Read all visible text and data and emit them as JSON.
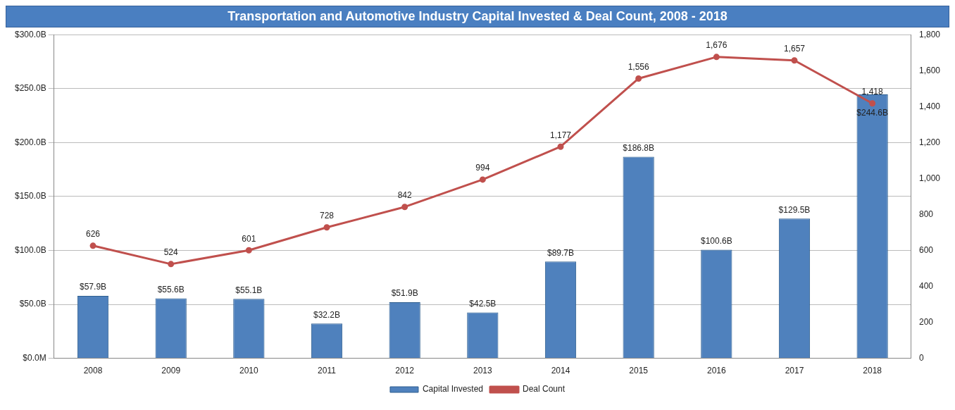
{
  "chart_data": {
    "type": "bar",
    "title": "Transportation and Automotive Industry Capital Invested & Deal Count, 2008 - 2018",
    "categories": [
      "2008",
      "2009",
      "2010",
      "2011",
      "2012",
      "2013",
      "2014",
      "2015",
      "2016",
      "2017",
      "2018"
    ],
    "series": [
      {
        "name": "Capital Invested",
        "color": "#4f81bd",
        "values": [
          57.9,
          55.6,
          55.1,
          32.2,
          51.9,
          42.5,
          89.7,
          186.8,
          100.6,
          129.5,
          244.6
        ],
        "value_labels": [
          "$57.9B",
          "$55.6B",
          "$55.1B",
          "$32.2B",
          "$51.9B",
          "$42.5B",
          "$89.7B",
          "$186.8B",
          "$100.6B",
          "$129.5B",
          "$244.6B"
        ]
      },
      {
        "name": "Deal Count",
        "type": "line",
        "axis": "y2",
        "color": "#c0504d",
        "values": [
          626,
          524,
          601,
          728,
          842,
          994,
          1177,
          1556,
          1676,
          1657,
          1418
        ],
        "value_labels": [
          "626",
          "524",
          "601",
          "728",
          "842",
          "994",
          "1,177",
          "1,556",
          "1,676",
          "1,657",
          "1,418"
        ]
      }
    ],
    "ylim": [
      0,
      300
    ],
    "yticks": [
      {
        "value": 0,
        "label": "$0.0M"
      },
      {
        "value": 50,
        "label": "$50.0B"
      },
      {
        "value": 100,
        "label": "$100.0B"
      },
      {
        "value": 150,
        "label": "$150.0B"
      },
      {
        "value": 200,
        "label": "$200.0B"
      },
      {
        "value": 250,
        "label": "$250.0B"
      },
      {
        "value": 300,
        "label": "$300.0B"
      }
    ],
    "y2lim": [
      0,
      1800
    ],
    "y2ticks": [
      0,
      200,
      400,
      600,
      800,
      {
        "value": 1000,
        "label": "1,000"
      },
      {
        "value": 1200,
        "label": "1,200"
      },
      {
        "value": 1400,
        "label": "1,400"
      },
      {
        "value": 1600,
        "label": "1,600"
      },
      {
        "value": 1800,
        "label": "1,800"
      }
    ],
    "grid": "y",
    "legend": "bottom",
    "marker": "circle",
    "line_style": "solid"
  }
}
